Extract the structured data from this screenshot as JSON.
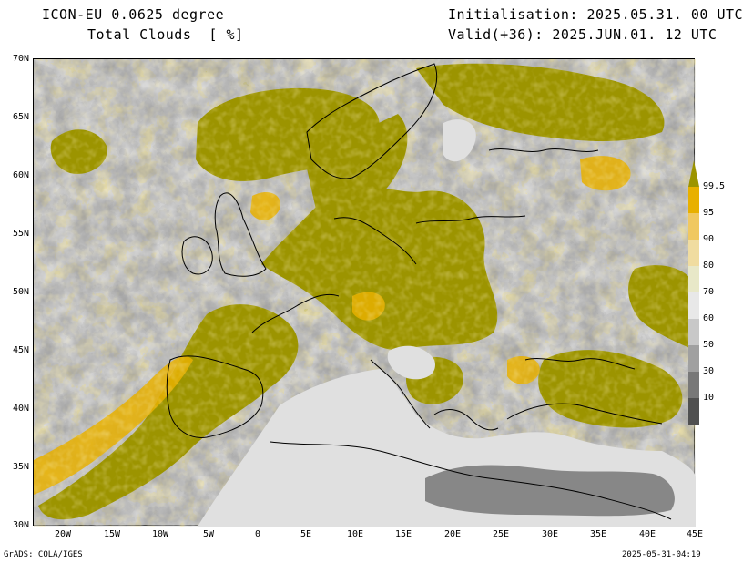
{
  "header": {
    "model": "ICON-EU 0.0625 degree",
    "field": "Total Clouds  [ %]",
    "init": "Initialisation: 2025.05.31. 00 UTC",
    "valid": "Valid(+36): 2025.JUN.01. 12 UTC"
  },
  "axes": {
    "lat_labels": [
      "70N",
      "65N",
      "60N",
      "55N",
      "50N",
      "45N",
      "40N",
      "35N",
      "30N"
    ],
    "lon_labels": [
      "20W",
      "15W",
      "10W",
      "5W",
      "0",
      "5E",
      "10E",
      "15E",
      "20E",
      "25E",
      "30E",
      "35E",
      "40E",
      "45E"
    ],
    "lat_range": [
      30,
      70
    ],
    "lon_range": [
      -23,
      45
    ]
  },
  "colorbar": {
    "labels": [
      "99.5",
      "95",
      "90",
      "80",
      "70",
      "60",
      "50",
      "30",
      "10"
    ],
    "colors": [
      "#9c9400",
      "#e8b000",
      "#f0c860",
      "#f0dca0",
      "#e8e8c8",
      "#e8e8e8",
      "#c8c8c8",
      "#a0a0a0",
      "#787878",
      "#505050"
    ]
  },
  "footer": {
    "left": "GrADS: COLA/IGES",
    "right": "2025-05-31-04:19"
  }
}
